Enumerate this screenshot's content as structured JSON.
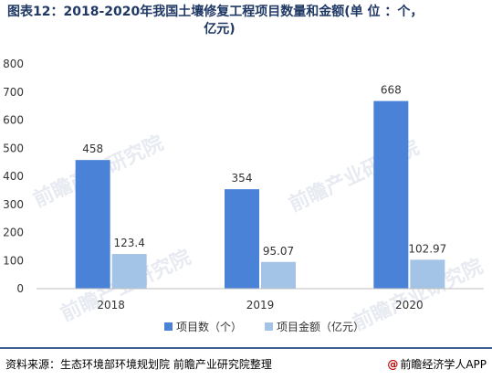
{
  "title": {
    "line1": "图表12：2018-2020年我国土壤修复工程项目数量和金额(单 位 ：个，",
    "line2": "亿元)"
  },
  "watermark_text": "前瞻产业研究院",
  "chart_data": {
    "type": "bar",
    "categories": [
      "2018",
      "2019",
      "2020"
    ],
    "series": [
      {
        "name": "项目数（个）",
        "values": [
          458,
          354,
          668
        ],
        "labels": [
          "458",
          "354",
          "668"
        ],
        "color": "#4a82d8"
      },
      {
        "name": "项目金额（亿元）",
        "values": [
          123.4,
          95.07,
          102.97
        ],
        "labels": [
          "123.4",
          "95.07",
          "102.97"
        ],
        "color": "#a3c4e6"
      }
    ],
    "ylim": [
      0,
      800
    ],
    "yticks": [
      0,
      100,
      200,
      300,
      400,
      500,
      600,
      700,
      800
    ],
    "grid": false,
    "legend_position": "bottom-center"
  },
  "footer": {
    "source": "资料来源：生态环境部环境规划院 前瞻产业研究院整理",
    "brand_icon": "@",
    "brand": "前瞻经济学人APP"
  }
}
